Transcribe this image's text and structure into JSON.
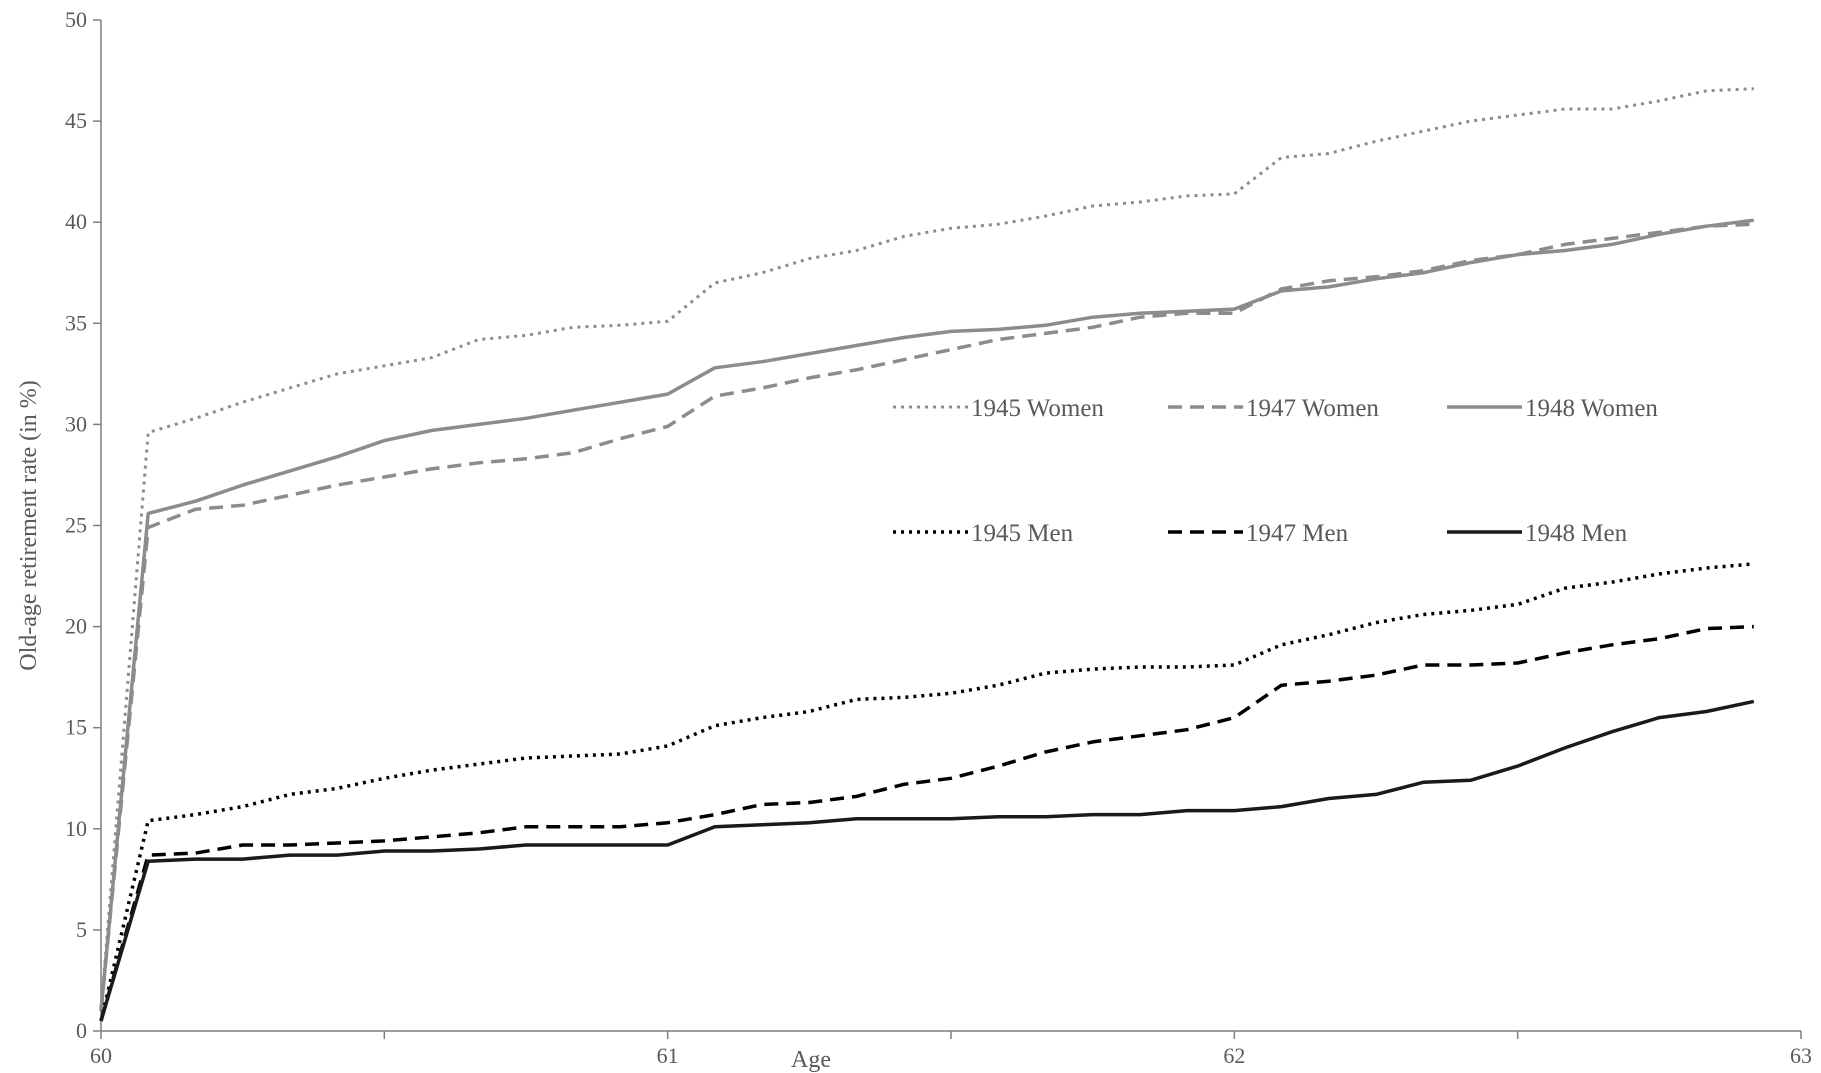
{
  "chart_data": {
    "type": "line",
    "title": "",
    "xlabel": "Age",
    "ylabel": "Old-age retirement rate (in %)",
    "xlim": [
      60,
      63
    ],
    "ylim": [
      0,
      50
    ],
    "xticks": [
      60,
      61,
      62,
      63
    ],
    "yticks": [
      0,
      5,
      10,
      15,
      20,
      25,
      30,
      35,
      40,
      45,
      50
    ],
    "grid": false,
    "legend_position": "middle-right",
    "x": [
      60,
      60.0833,
      60.1667,
      60.25,
      60.3333,
      60.4167,
      60.5,
      60.5833,
      60.6667,
      60.75,
      60.8333,
      60.9167,
      61,
      61.0833,
      61.1667,
      61.25,
      61.3333,
      61.4167,
      61.5,
      61.5833,
      61.6667,
      61.75,
      61.8333,
      61.9167,
      62,
      62.0833,
      62.1667,
      62.25,
      62.3333,
      62.4167,
      62.5,
      62.5833,
      62.6667,
      62.75,
      62.8333,
      62.9167
    ],
    "series": [
      {
        "name": "1945 Women",
        "color": "#8c8c8c",
        "dash": "dotted",
        "width": 3,
        "values": [
          1.0,
          29.6,
          30.3,
          31.1,
          31.8,
          32.5,
          32.9,
          33.3,
          34.2,
          34.4,
          34.8,
          34.9,
          35.1,
          37.0,
          37.5,
          38.2,
          38.6,
          39.3,
          39.7,
          39.9,
          40.3,
          40.8,
          41.0,
          41.3,
          41.4,
          43.2,
          43.4,
          44.0,
          44.5,
          45.0,
          45.3,
          45.6,
          45.6,
          46.0,
          46.5,
          46.6
        ]
      },
      {
        "name": "1947 Women",
        "color": "#8c8c8c",
        "dash": "dashed",
        "width": 3.5,
        "values": [
          1.0,
          24.9,
          25.8,
          26.0,
          26.5,
          27.0,
          27.4,
          27.8,
          28.1,
          28.3,
          28.6,
          29.3,
          29.9,
          31.4,
          31.8,
          32.3,
          32.7,
          33.2,
          33.7,
          34.2,
          34.5,
          34.8,
          35.3,
          35.5,
          35.5,
          36.7,
          37.1,
          37.3,
          37.6,
          38.1,
          38.4,
          38.9,
          39.2,
          39.5,
          39.8,
          39.9
        ]
      },
      {
        "name": "1948 Women",
        "color": "#8c8c8c",
        "dash": "solid",
        "width": 3.5,
        "values": [
          1.0,
          25.6,
          26.2,
          27.0,
          27.7,
          28.4,
          29.2,
          29.7,
          30.0,
          30.3,
          30.7,
          31.1,
          31.5,
          32.8,
          33.1,
          33.5,
          33.9,
          34.3,
          34.6,
          34.7,
          34.9,
          35.3,
          35.5,
          35.6,
          35.7,
          36.6,
          36.8,
          37.2,
          37.5,
          38.0,
          38.4,
          38.6,
          38.9,
          39.4,
          39.8,
          40.1
        ]
      },
      {
        "name": "1945 Men",
        "color": "#000000",
        "dash": "dotted",
        "width": 3.5,
        "values": [
          0.5,
          10.4,
          10.7,
          11.1,
          11.7,
          12.0,
          12.5,
          12.9,
          13.2,
          13.5,
          13.6,
          13.7,
          14.1,
          15.1,
          15.5,
          15.8,
          16.4,
          16.5,
          16.7,
          17.1,
          17.7,
          17.9,
          18.0,
          18.0,
          18.1,
          19.1,
          19.6,
          20.2,
          20.6,
          20.8,
          21.1,
          21.9,
          22.2,
          22.6,
          22.9,
          23.1
        ]
      },
      {
        "name": "1947 Men",
        "color": "#000000",
        "dash": "dashed",
        "width": 3.5,
        "values": [
          0.5,
          8.7,
          8.8,
          9.2,
          9.2,
          9.3,
          9.4,
          9.6,
          9.8,
          10.1,
          10.1,
          10.1,
          10.3,
          10.7,
          11.2,
          11.3,
          11.6,
          12.2,
          12.5,
          13.1,
          13.8,
          14.3,
          14.6,
          14.9,
          15.5,
          17.1,
          17.3,
          17.6,
          18.1,
          18.1,
          18.2,
          18.7,
          19.1,
          19.4,
          19.9,
          20.0
        ]
      },
      {
        "name": "1948 Men",
        "color": "#1a1a1a",
        "dash": "solid",
        "width": 3.5,
        "values": [
          0.5,
          8.4,
          8.5,
          8.5,
          8.7,
          8.7,
          8.9,
          8.9,
          9.0,
          9.2,
          9.2,
          9.2,
          9.2,
          10.1,
          10.2,
          10.3,
          10.5,
          10.5,
          10.5,
          10.6,
          10.6,
          10.7,
          10.7,
          10.9,
          10.9,
          11.1,
          11.5,
          11.7,
          12.3,
          12.4,
          13.1,
          14.0,
          14.8,
          15.5,
          15.8,
          16.3
        ]
      }
    ]
  }
}
